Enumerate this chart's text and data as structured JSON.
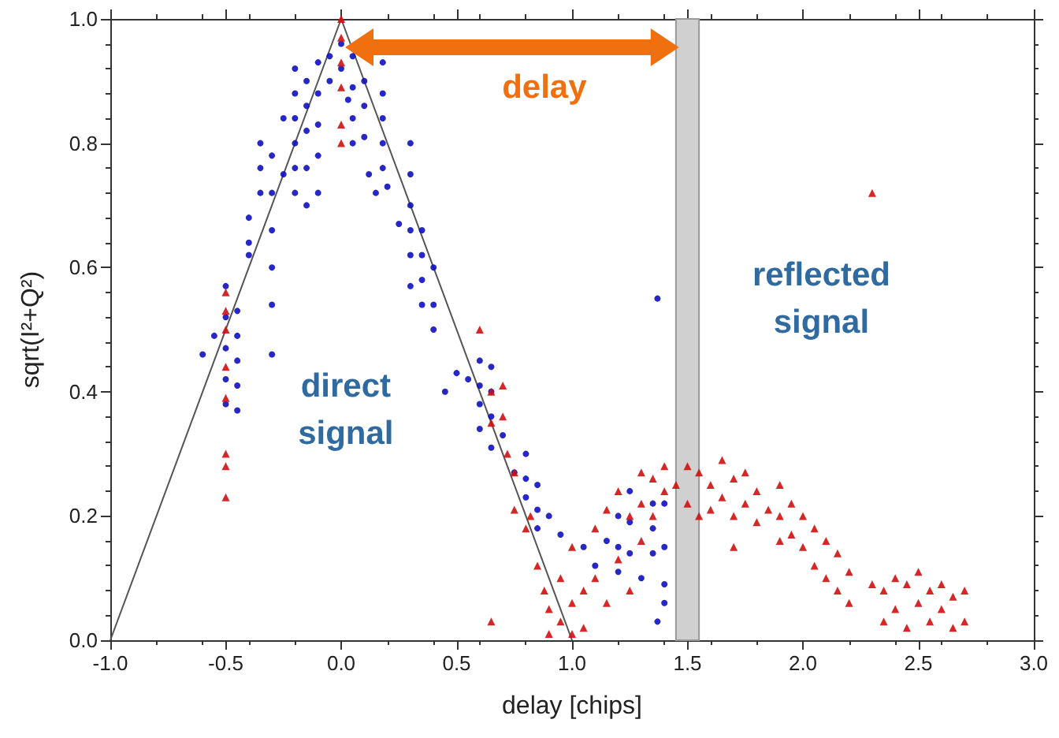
{
  "chart_data": {
    "type": "scatter",
    "xlabel": "delay [chips]",
    "ylabel": "sqrt(I²+Q²)",
    "xlim": [
      -1,
      3
    ],
    "ylim": [
      0,
      1
    ],
    "xticks": [
      {
        "value": -1,
        "label": "-1.0"
      },
      {
        "value": -0.5,
        "label": "-0.5"
      },
      {
        "value": 0,
        "label": "0.0"
      },
      {
        "value": 0.5,
        "label": "0.5"
      },
      {
        "value": 1,
        "label": "1.0"
      },
      {
        "value": 1.5,
        "label": "1.5"
      },
      {
        "value": 2,
        "label": "2.0"
      },
      {
        "value": 2.5,
        "label": "2.5"
      },
      {
        "value": 3,
        "label": "3.0"
      }
    ],
    "yticks": [
      {
        "value": 0,
        "label": "0.0"
      },
      {
        "value": 0.2,
        "label": "0.2"
      },
      {
        "value": 0.4,
        "label": "0.4"
      },
      {
        "value": 0.6,
        "label": "0.6"
      },
      {
        "value": 0.8,
        "label": "0.8"
      },
      {
        "value": 1,
        "label": "1.0"
      }
    ],
    "grid": false,
    "annotations": [
      "delay",
      "direct signal",
      "reflected signal"
    ],
    "bands": [
      {
        "axis": "x",
        "from": 1.45,
        "to": 1.55,
        "color": "#d0d0d0"
      }
    ],
    "series": [
      {
        "type": "line",
        "color": "#555555",
        "marker": "none",
        "line_style": "solid",
        "x": [
          -1,
          0,
          1
        ],
        "values": [
          0,
          1,
          0
        ]
      },
      {
        "color": "#1010c0",
        "marker": "circle",
        "x": [
          -0.6,
          -0.55,
          -0.5,
          -0.5,
          -0.5,
          -0.5,
          -0.5,
          -0.45,
          -0.45,
          -0.45,
          -0.45,
          -0.45,
          -0.4,
          -0.4,
          -0.4,
          -0.35,
          -0.35,
          -0.35,
          -0.3,
          -0.3,
          -0.3,
          -0.3,
          -0.3,
          -0.3,
          -0.25,
          -0.25,
          -0.2,
          -0.2,
          -0.2,
          -0.2,
          -0.2,
          -0.2,
          -0.15,
          -0.15,
          -0.15,
          -0.15,
          -0.15,
          -0.1,
          -0.1,
          -0.1,
          -0.1,
          -0.1,
          -0.05,
          -0.05,
          0,
          0,
          0.03,
          0.05,
          0.05,
          0.05,
          0.05,
          0.1,
          0.1,
          0.1,
          0.12,
          0.15,
          0.18,
          0.18,
          0.18,
          0.18,
          0.18,
          0.2,
          0.25,
          0.3,
          0.3,
          0.3,
          0.3,
          0.3,
          0.3,
          0.35,
          0.35,
          0.35,
          0.35,
          0.4,
          0.4,
          0.4,
          0.45,
          0.5,
          0.55,
          0.6,
          0.6,
          0.6,
          0.6,
          0.65,
          0.65,
          0.65,
          0.65,
          0.7,
          0.75,
          0.8,
          0.8,
          0.8,
          0.85,
          0.85,
          0.85,
          0.9,
          0.95,
          1.05,
          1.1,
          1.15,
          1.2,
          1.2,
          1.2,
          1.25,
          1.25,
          1.25,
          1.3,
          1.35,
          1.35,
          1.35,
          1.37,
          1.37,
          1.4,
          1.4,
          1.4,
          1.4
        ],
        "values": [
          0.46,
          0.49,
          0.57,
          0.52,
          0.47,
          0.42,
          0.38,
          0.53,
          0.49,
          0.45,
          0.41,
          0.37,
          0.62,
          0.64,
          0.68,
          0.72,
          0.76,
          0.8,
          0.78,
          0.72,
          0.66,
          0.6,
          0.54,
          0.46,
          0.75,
          0.84,
          0.92,
          0.88,
          0.84,
          0.8,
          0.76,
          0.72,
          0.9,
          0.86,
          0.82,
          0.76,
          0.7,
          0.93,
          0.88,
          0.83,
          0.78,
          0.72,
          0.94,
          0.9,
          0.92,
          0.96,
          0.87,
          0.94,
          0.89,
          0.84,
          0.8,
          0.9,
          0.86,
          0.81,
          0.75,
          0.72,
          0.93,
          0.88,
          0.84,
          0.8,
          0.76,
          0.73,
          0.67,
          0.8,
          0.75,
          0.7,
          0.66,
          0.62,
          0.57,
          0.66,
          0.62,
          0.58,
          0.54,
          0.6,
          0.54,
          0.5,
          0.4,
          0.43,
          0.42,
          0.45,
          0.41,
          0.38,
          0.34,
          0.44,
          0.4,
          0.36,
          0.31,
          0.33,
          0.27,
          0.3,
          0.26,
          0.23,
          0.25,
          0.21,
          0.18,
          0.2,
          0.17,
          0.15,
          0.12,
          0.16,
          0.2,
          0.15,
          0.11,
          0.24,
          0.19,
          0.14,
          0.1,
          0.22,
          0.18,
          0.14,
          0.55,
          0.03,
          0.22,
          0.15,
          0.09,
          0.06
        ]
      },
      {
        "color": "#d01010",
        "marker": "triangle",
        "x": [
          0,
          0,
          0,
          0,
          0,
          0,
          -0.5,
          -0.5,
          -0.5,
          -0.5,
          -0.5,
          -0.5,
          -0.5,
          -0.5,
          0.6,
          0.65,
          0.65,
          0.65,
          0.7,
          0.7,
          0.72,
          0.75,
          0.75,
          0.8,
          0.82,
          0.85,
          0.88,
          0.9,
          0.9,
          0.95,
          0.95,
          1,
          1,
          1,
          1.05,
          1.05,
          1.1,
          1.1,
          1.15,
          1.15,
          1.2,
          1.2,
          1.25,
          1.25,
          1.3,
          1.3,
          1.3,
          1.35,
          1.35,
          1.4,
          1.4,
          1.45,
          1.5,
          1.5,
          1.55,
          1.55,
          1.6,
          1.6,
          1.65,
          1.65,
          1.7,
          1.7,
          1.7,
          1.75,
          1.75,
          1.8,
          1.8,
          1.85,
          1.9,
          1.9,
          1.9,
          1.95,
          1.95,
          2,
          2,
          2.05,
          2.05,
          2.1,
          2.1,
          2.15,
          2.15,
          2.2,
          2.2,
          2.3,
          2.3,
          2.35,
          2.35,
          2.4,
          2.4,
          2.45,
          2.45,
          2.5,
          2.5,
          2.55,
          2.55,
          2.6,
          2.6,
          2.65,
          2.65,
          2.7,
          2.7
        ],
        "values": [
          1,
          0.97,
          0.93,
          0.89,
          0.83,
          0.8,
          0.56,
          0.53,
          0.5,
          0.44,
          0.39,
          0.3,
          0.28,
          0.23,
          0.5,
          0.4,
          0.35,
          0.03,
          0.41,
          0.36,
          0.3,
          0.27,
          0.21,
          0.18,
          0.2,
          0.12,
          0.08,
          0.05,
          0.01,
          0.1,
          0.03,
          0.15,
          0.06,
          0.01,
          0.08,
          0.02,
          0.18,
          0.1,
          0.21,
          0.06,
          0.24,
          0.13,
          0.2,
          0.08,
          0.27,
          0.22,
          0.16,
          0.26,
          0.2,
          0.28,
          0.24,
          0.25,
          0.28,
          0.22,
          0.27,
          0.2,
          0.25,
          0.21,
          0.29,
          0.23,
          0.26,
          0.2,
          0.15,
          0.27,
          0.22,
          0.24,
          0.19,
          0.21,
          0.25,
          0.2,
          0.16,
          0.22,
          0.17,
          0.2,
          0.15,
          0.18,
          0.12,
          0.16,
          0.1,
          0.14,
          0.08,
          0.11,
          0.06,
          0.72,
          0.09,
          0.08,
          0.03,
          0.1,
          0.05,
          0.09,
          0.02,
          0.11,
          0.06,
          0.08,
          0.03,
          0.09,
          0.05,
          0.07,
          0.02,
          0.08,
          0.03
        ]
      }
    ]
  }
}
